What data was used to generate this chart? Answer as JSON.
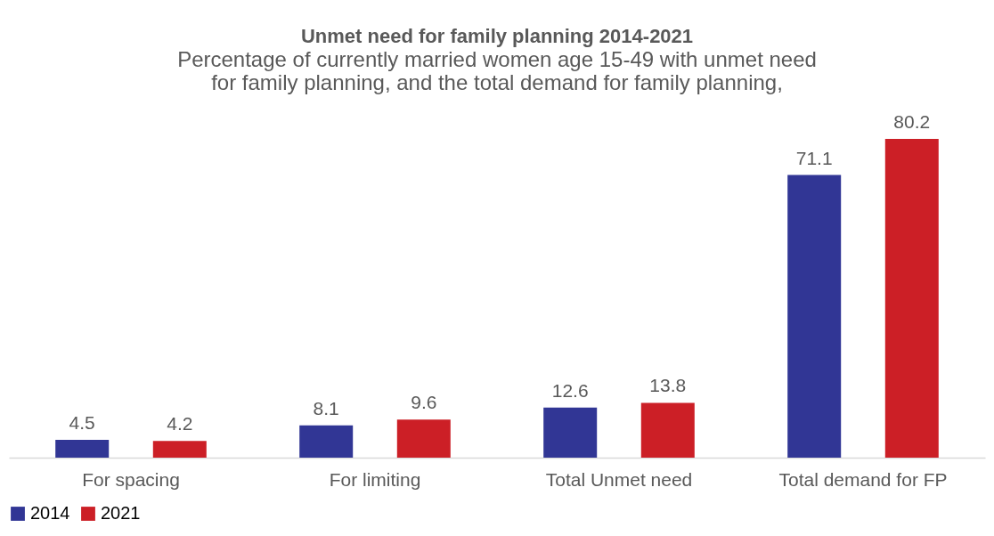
{
  "chart_data": {
    "type": "bar",
    "title": "Unmet need for family planning 2014-2021",
    "subtitle": [
      "Percentage of currently married women age 15-49 with unmet need",
      "for family planning, and the total demand for family planning,"
    ],
    "categories": [
      "For spacing",
      "For limiting",
      "Total Unmet need",
      "Total demand for FP"
    ],
    "series": [
      {
        "name": "2014",
        "color": "#313695",
        "values": [
          4.5,
          8.1,
          12.6,
          71.1
        ]
      },
      {
        "name": "2021",
        "color": "#cc1f26",
        "values": [
          4.2,
          9.6,
          13.8,
          80.2
        ]
      }
    ],
    "data_labels": true,
    "legend": "bottom",
    "grid": false,
    "tick_labels": "x"
  }
}
